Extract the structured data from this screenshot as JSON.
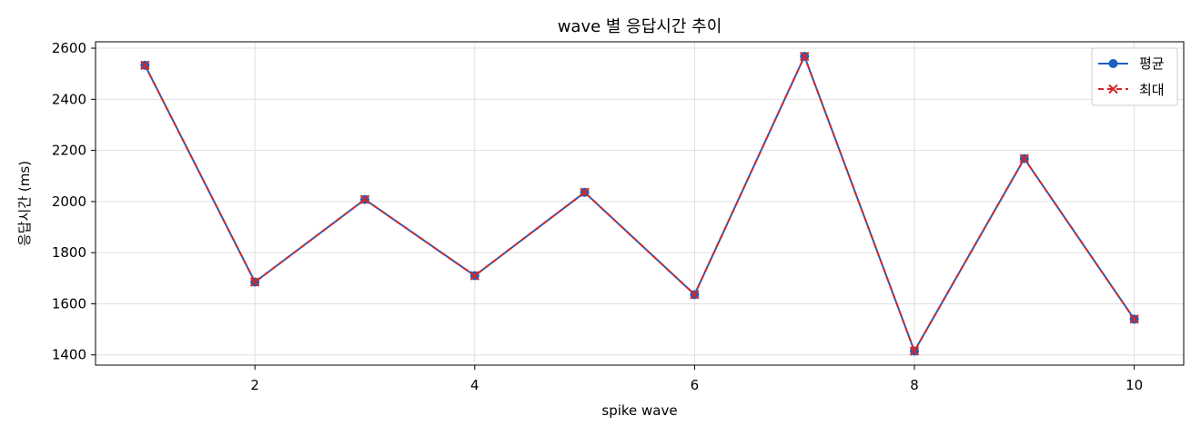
{
  "chart_data": {
    "type": "line",
    "title": "wave 별 응답시간 추이",
    "xlabel": "spike wave",
    "ylabel": "응답시간 (ms)",
    "x": [
      1,
      2,
      3,
      4,
      5,
      6,
      7,
      8,
      9,
      10
    ],
    "xlim": [
      0.55,
      10.45
    ],
    "ylim": [
      1360,
      2625
    ],
    "xticks": [
      2,
      4,
      6,
      8,
      10
    ],
    "yticks": [
      1400,
      1600,
      1800,
      2000,
      2200,
      2400,
      2600
    ],
    "grid": true,
    "legend_position": "top-right",
    "series": [
      {
        "name": "평균",
        "color": "#1f5fbf",
        "marker": "circle",
        "line_style": "solid",
        "values": [
          2533,
          1685,
          2008,
          1710,
          2036,
          1636,
          2568,
          1415,
          2168,
          1540
        ]
      },
      {
        "name": "최대",
        "color": "#d62728",
        "marker": "x",
        "line_style": "dashed",
        "values": [
          2533,
          1685,
          2008,
          1710,
          2036,
          1636,
          2568,
          1415,
          2168,
          1540
        ]
      }
    ]
  }
}
